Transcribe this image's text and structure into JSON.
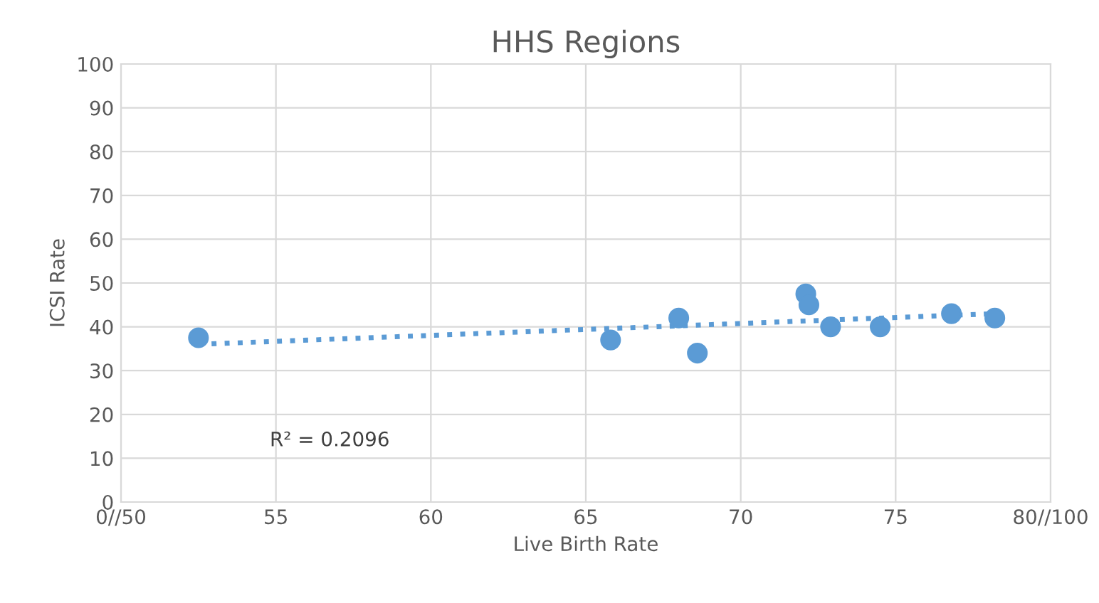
{
  "chart_data": {
    "type": "scatter",
    "title": "HHS Regions",
    "xlabel": "Live Birth Rate",
    "ylabel": "ICSI Rate",
    "series": [
      {
        "color": "#5b9bd5",
        "marker": "circle",
        "x": [
          52.5,
          65.8,
          68.0,
          68.6,
          72.1,
          72.2,
          72.9,
          74.5,
          76.8,
          78.2
        ],
        "values": [
          37.5,
          37,
          42,
          34,
          47.5,
          45,
          40,
          40,
          43,
          42
        ]
      },
      {
        "type": "line",
        "color": "#5b9bd5",
        "line_style": "dotted",
        "marker": "none",
        "x": [
          52.5,
          78.2
        ],
        "values": [
          36,
          43
        ]
      }
    ],
    "annotations": [
      "R² = 0.2096"
    ],
    "xlim": [
      50,
      80
    ],
    "ylim": [
      0,
      100
    ],
    "xticks": [
      {
        "value": 50,
        "label": "0//50"
      },
      55,
      60,
      65,
      70,
      75,
      {
        "value": 80,
        "label": "80//100"
      }
    ],
    "yticks": [
      0,
      10,
      20,
      30,
      40,
      50,
      60,
      70,
      80,
      90,
      100
    ],
    "grid": true,
    "legend": false
  }
}
